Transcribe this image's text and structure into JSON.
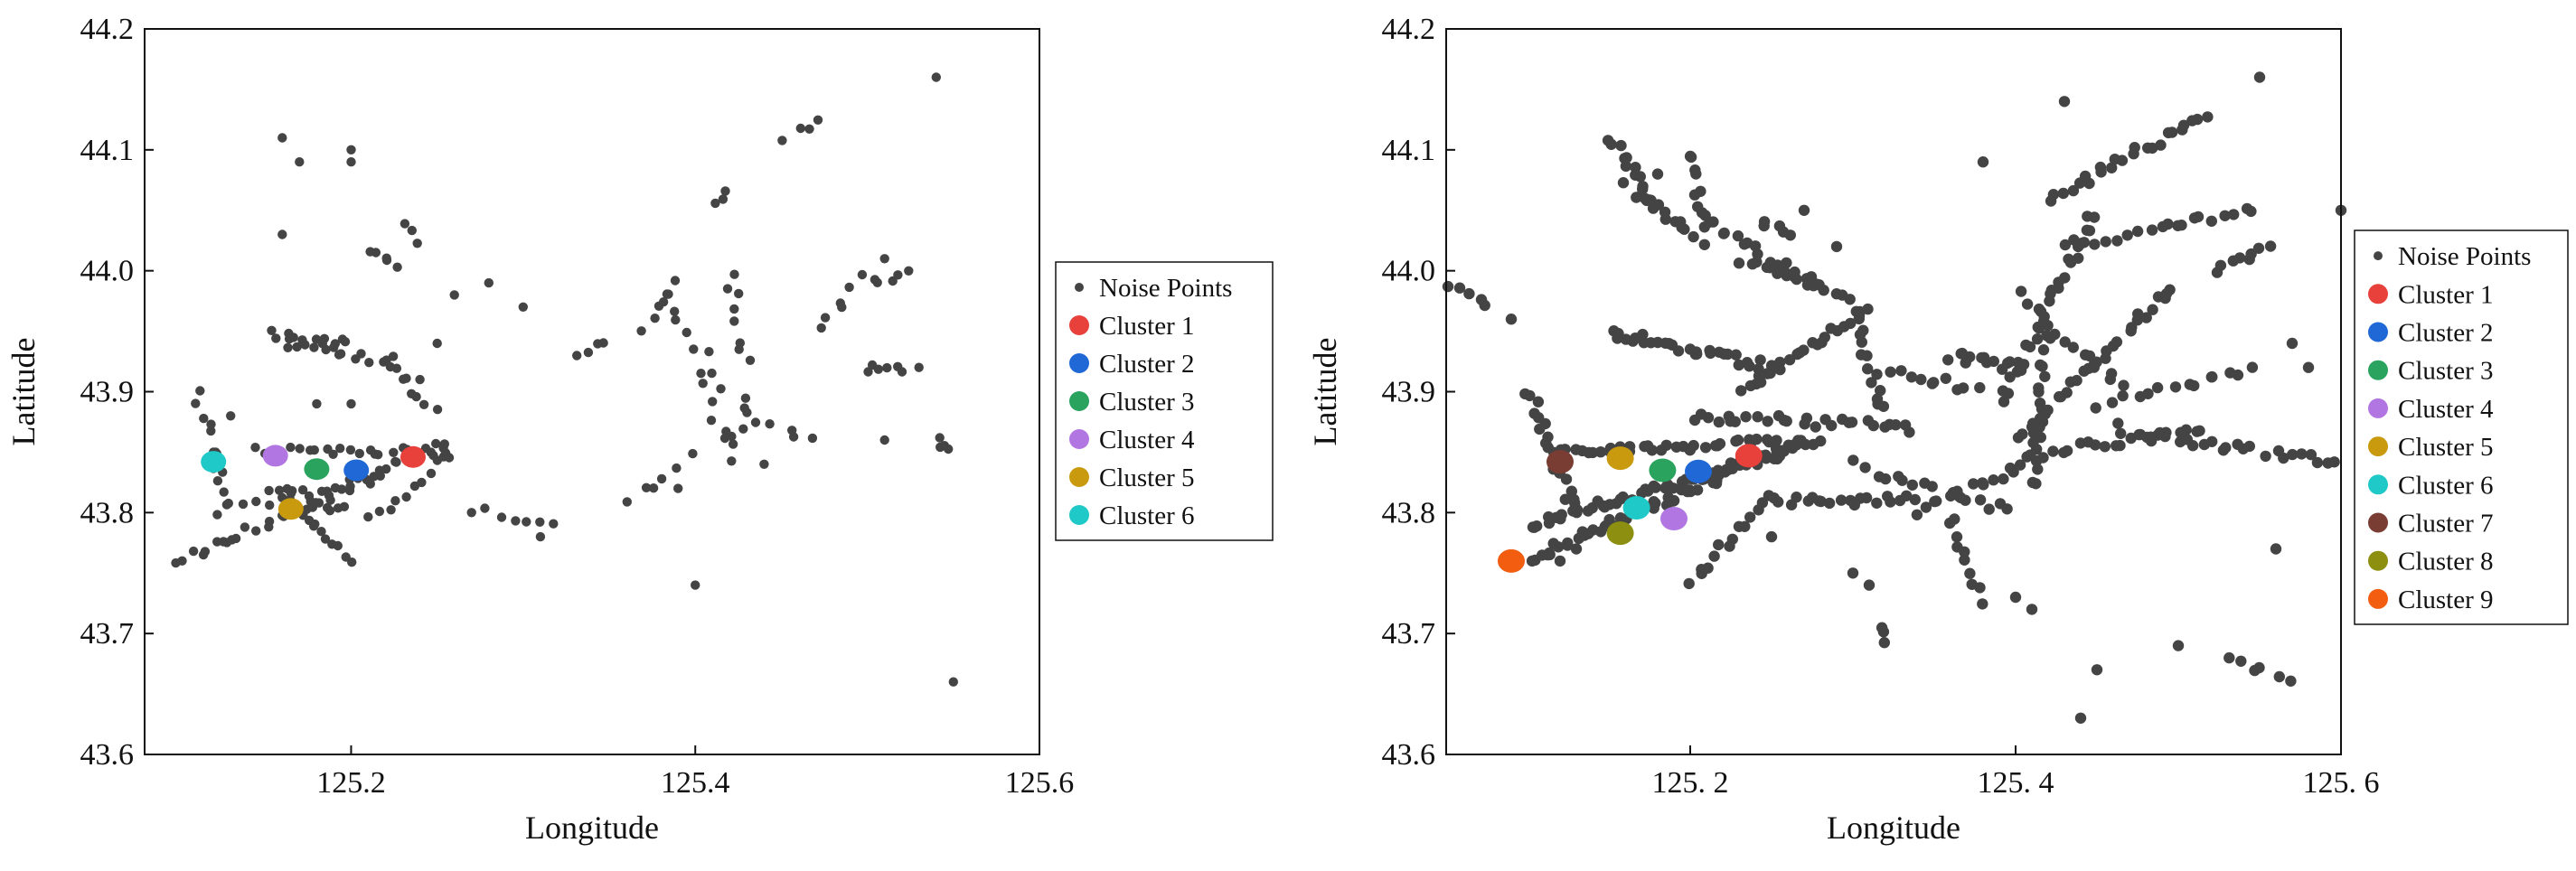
{
  "chart_data": [
    {
      "type": "scatter",
      "xlabel": "Longitude",
      "ylabel": "Latitude",
      "xlim": [
        125.08,
        125.6
      ],
      "ylim": [
        43.6,
        44.2
      ],
      "xticks": [
        125.2,
        125.4,
        125.6
      ],
      "xtick_labels": [
        "125.2",
        "125.4",
        "125.6"
      ],
      "yticks": [
        43.6,
        43.7,
        43.8,
        43.9,
        44.0,
        44.1,
        44.2
      ],
      "ytick_labels": [
        "43.6",
        "43.7",
        "43.8",
        "43.9",
        "44.0",
        "44.1",
        "44.2"
      ],
      "grid": false,
      "legend_position": "right",
      "noise_color": "#444444",
      "noise_label": "Noise Points",
      "noise_segments": [
        [
          125.1,
          43.76,
          125.26,
          43.86,
          40
        ],
        [
          125.11,
          43.9,
          125.13,
          43.8,
          12
        ],
        [
          125.14,
          43.85,
          125.26,
          43.85,
          25
        ],
        [
          125.15,
          43.95,
          125.23,
          43.92,
          16
        ],
        [
          125.16,
          43.94,
          125.2,
          43.94,
          10
        ],
        [
          125.17,
          43.8,
          125.2,
          43.76,
          10
        ],
        [
          125.15,
          43.82,
          125.2,
          43.8,
          12
        ],
        [
          125.12,
          43.8,
          125.22,
          43.83,
          14
        ],
        [
          125.21,
          43.79,
          125.26,
          43.85,
          10
        ],
        [
          125.22,
          43.93,
          125.25,
          43.88,
          8
        ],
        [
          125.21,
          44.02,
          125.23,
          44.0,
          5
        ],
        [
          125.23,
          44.04,
          125.24,
          44.02,
          3
        ],
        [
          125.28,
          43.8,
          125.32,
          43.79,
          6
        ],
        [
          125.33,
          43.93,
          125.35,
          43.94,
          4
        ],
        [
          125.36,
          43.81,
          125.4,
          43.85,
          6
        ],
        [
          125.37,
          43.95,
          125.39,
          44.0,
          6
        ],
        [
          125.38,
          43.98,
          125.42,
          43.9,
          8
        ],
        [
          125.4,
          43.92,
          125.42,
          43.85,
          6
        ],
        [
          125.42,
          44.0,
          125.43,
          43.92,
          8
        ],
        [
          125.42,
          43.84,
          125.43,
          43.9,
          6
        ],
        [
          125.43,
          43.88,
          125.47,
          43.86,
          6
        ],
        [
          125.45,
          44.11,
          125.48,
          44.13,
          4
        ],
        [
          125.47,
          43.95,
          125.5,
          44.0,
          6
        ],
        [
          125.5,
          43.99,
          125.53,
          44.0,
          5
        ],
        [
          125.5,
          43.92,
          125.52,
          43.92,
          6
        ],
        [
          125.54,
          43.86,
          125.55,
          43.85,
          4
        ],
        [
          125.41,
          44.05,
          125.42,
          44.07,
          3
        ]
      ],
      "noise_points": [
        [
          125.16,
          44.11
        ],
        [
          125.17,
          44.09
        ],
        [
          125.16,
          44.03
        ],
        [
          125.2,
          44.1
        ],
        [
          125.2,
          44.09
        ],
        [
          125.26,
          43.98
        ],
        [
          125.28,
          43.99
        ],
        [
          125.3,
          43.97
        ],
        [
          125.4,
          43.74
        ],
        [
          125.51,
          44.01
        ],
        [
          125.53,
          43.92
        ],
        [
          125.51,
          43.86
        ],
        [
          125.54,
          44.16
        ],
        [
          125.55,
          43.66
        ],
        [
          125.44,
          43.84
        ],
        [
          125.39,
          43.82
        ],
        [
          125.31,
          43.78
        ],
        [
          125.27,
          43.8
        ],
        [
          125.24,
          43.91
        ],
        [
          125.25,
          43.94
        ],
        [
          125.18,
          43.89
        ],
        [
          125.2,
          43.89
        ],
        [
          125.13,
          43.88
        ],
        [
          125.12,
          43.85
        ]
      ],
      "series": [
        {
          "name": "Cluster 1",
          "color": "#e8403b",
          "x": [
            125.236
          ],
          "y": [
            43.846
          ]
        },
        {
          "name": "Cluster 2",
          "color": "#1f68d6",
          "x": [
            125.203
          ],
          "y": [
            43.835
          ]
        },
        {
          "name": "Cluster 3",
          "color": "#2aa35f",
          "x": [
            125.18
          ],
          "y": [
            43.836
          ]
        },
        {
          "name": "Cluster 4",
          "color": "#b276e2",
          "x": [
            125.156
          ],
          "y": [
            43.847
          ]
        },
        {
          "name": "Cluster 5",
          "color": "#c99a0e",
          "x": [
            125.165
          ],
          "y": [
            43.803
          ]
        },
        {
          "name": "Cluster 6",
          "color": "#1ec9c7",
          "x": [
            125.12
          ],
          "y": [
            43.842
          ]
        }
      ]
    },
    {
      "type": "scatter",
      "xlabel": "Longitude",
      "ylabel": "Latitude",
      "xlim": [
        125.05,
        125.6
      ],
      "ylim": [
        43.6,
        44.2
      ],
      "xticks": [
        125.2,
        125.4,
        125.6
      ],
      "xtick_labels": [
        "125. 2",
        "125. 4",
        "125. 6"
      ],
      "yticks": [
        43.6,
        43.7,
        43.8,
        43.9,
        44.0,
        44.1,
        44.2
      ],
      "ytick_labels": [
        "43.6",
        "43.7",
        "43.8",
        "43.9",
        "44.0",
        "44.1",
        "44.2"
      ],
      "grid": false,
      "legend_position": "right",
      "noise_color": "#444444",
      "noise_label": "Noise Points",
      "noise_segments": [
        [
          125.1,
          43.76,
          125.27,
          43.86,
          60
        ],
        [
          125.1,
          43.79,
          125.26,
          43.85,
          50
        ],
        [
          125.1,
          43.9,
          125.13,
          43.8,
          20
        ],
        [
          125.12,
          43.85,
          125.28,
          43.86,
          40
        ],
        [
          125.15,
          43.95,
          125.25,
          43.92,
          30
        ],
        [
          125.15,
          44.11,
          125.18,
          44.05,
          14
        ],
        [
          125.16,
          44.07,
          125.21,
          44.02,
          14
        ],
        [
          125.2,
          44.1,
          125.21,
          44.03,
          10
        ],
        [
          125.21,
          44.04,
          125.3,
          43.97,
          22
        ],
        [
          125.23,
          44.01,
          125.28,
          43.99,
          12
        ],
        [
          125.23,
          43.9,
          125.31,
          43.97,
          24
        ],
        [
          125.2,
          43.88,
          125.34,
          43.87,
          28
        ],
        [
          125.25,
          43.81,
          125.34,
          43.81,
          20
        ],
        [
          125.2,
          43.74,
          125.25,
          43.82,
          14
        ],
        [
          125.3,
          43.97,
          125.32,
          43.88,
          14
        ],
        [
          125.36,
          43.93,
          125.4,
          43.92,
          12
        ],
        [
          125.34,
          43.8,
          125.42,
          43.85,
          18
        ],
        [
          125.3,
          43.84,
          125.4,
          43.8,
          16
        ],
        [
          125.36,
          43.8,
          125.38,
          43.72,
          10
        ],
        [
          125.39,
          43.89,
          125.45,
          44.05,
          30
        ],
        [
          125.4,
          43.86,
          125.5,
          43.99,
          30
        ],
        [
          125.41,
          43.82,
          125.42,
          43.95,
          20
        ],
        [
          125.42,
          44.06,
          125.52,
          44.13,
          24
        ],
        [
          125.43,
          44.02,
          125.55,
          44.05,
          20
        ],
        [
          125.42,
          43.85,
          125.52,
          43.87,
          18
        ],
        [
          125.46,
          43.87,
          125.6,
          43.84,
          26
        ],
        [
          125.45,
          43.89,
          125.55,
          43.92,
          14
        ],
        [
          125.4,
          43.98,
          125.47,
          43.9,
          14
        ],
        [
          125.32,
          43.92,
          125.38,
          43.9,
          10
        ],
        [
          125.05,
          43.99,
          125.08,
          43.97,
          5
        ],
        [
          125.52,
          44.0,
          125.56,
          44.02,
          8
        ],
        [
          125.53,
          43.68,
          125.57,
          43.66,
          6
        ],
        [
          125.32,
          43.69,
          125.32,
          43.71,
          3
        ],
        [
          125.24,
          44.04,
          125.27,
          44.03,
          5
        ]
      ],
      "noise_points": [
        [
          125.45,
          43.67
        ],
        [
          125.44,
          43.63
        ],
        [
          125.4,
          43.73
        ],
        [
          125.41,
          43.72
        ],
        [
          125.5,
          43.69
        ],
        [
          125.56,
          43.77
        ],
        [
          125.58,
          43.92
        ],
        [
          125.57,
          43.94
        ],
        [
          125.55,
          44.16
        ],
        [
          125.6,
          44.05
        ],
        [
          125.43,
          44.14
        ],
        [
          125.38,
          44.09
        ],
        [
          125.3,
          43.75
        ],
        [
          125.31,
          43.74
        ],
        [
          125.09,
          43.96
        ],
        [
          125.18,
          44.08
        ],
        [
          125.27,
          44.05
        ],
        [
          125.29,
          44.02
        ],
        [
          125.25,
          43.78
        ],
        [
          125.13,
          43.77
        ],
        [
          125.12,
          43.76
        ]
      ],
      "series": [
        {
          "name": "Cluster 1",
          "color": "#e8403b",
          "x": [
            125.236
          ],
          "y": [
            43.847
          ]
        },
        {
          "name": "Cluster 2",
          "color": "#1f68d6",
          "x": [
            125.205
          ],
          "y": [
            43.834
          ]
        },
        {
          "name": "Cluster 3",
          "color": "#2aa35f",
          "x": [
            125.183
          ],
          "y": [
            43.835
          ]
        },
        {
          "name": "Cluster 4",
          "color": "#b276e2",
          "x": [
            125.19
          ],
          "y": [
            43.795
          ]
        },
        {
          "name": "Cluster 5",
          "color": "#c99a0e",
          "x": [
            125.157
          ],
          "y": [
            43.845
          ]
        },
        {
          "name": "Cluster 6",
          "color": "#1ec9c7",
          "x": [
            125.167
          ],
          "y": [
            43.804
          ]
        },
        {
          "name": "Cluster 7",
          "color": "#7a3d34",
          "x": [
            125.12
          ],
          "y": [
            43.842
          ]
        },
        {
          "name": "Cluster 8",
          "color": "#8c8f10",
          "x": [
            125.157
          ],
          "y": [
            43.783
          ]
        },
        {
          "name": "Cluster 9",
          "color": "#f25d10",
          "x": [
            125.09
          ],
          "y": [
            43.76
          ]
        }
      ]
    }
  ]
}
